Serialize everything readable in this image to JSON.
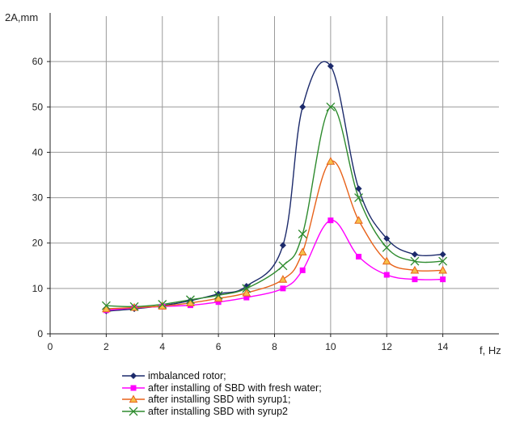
{
  "chart_data": {
    "type": "line",
    "title": "",
    "xlabel": "f, Hz",
    "ylabel": "2A,mm",
    "xlim": [
      0,
      16
    ],
    "ylim": [
      0,
      70
    ],
    "xticks": [
      0,
      2,
      4,
      6,
      8,
      10,
      12,
      14
    ],
    "yticks": [
      0,
      10,
      20,
      30,
      40,
      50,
      60
    ],
    "grid": true,
    "legend_position": "bottom",
    "series": [
      {
        "name": "imbalanced rotor;",
        "color": "#1c2a6b",
        "marker": "diamond",
        "x": [
          2,
          3,
          4,
          5,
          6,
          7,
          8.3,
          9,
          10,
          11,
          12,
          13,
          14
        ],
        "y": [
          5,
          5.5,
          6.2,
          7.3,
          8.8,
          10.5,
          19.5,
          50,
          59,
          32,
          21,
          17.5,
          17.5
        ]
      },
      {
        "name": "after installing of SBD with fresh water;",
        "color": "#ff00ff",
        "marker": "square",
        "x": [
          2,
          3,
          4,
          5,
          6,
          7,
          8.3,
          9,
          10,
          11,
          12,
          13,
          14
        ],
        "y": [
          5.2,
          5.7,
          6,
          6.3,
          7,
          8,
          10,
          14,
          25,
          17,
          13,
          12,
          12
        ]
      },
      {
        "name": "after installing SBD with syrup1;",
        "color": "#e8621a",
        "marker": "triangle",
        "x": [
          2,
          3,
          4,
          5,
          6,
          7,
          8.3,
          9,
          10,
          11,
          12,
          13,
          14
        ],
        "y": [
          5.5,
          5.8,
          6.1,
          6.8,
          7.8,
          9,
          12,
          18,
          38,
          25,
          16,
          14,
          14
        ]
      },
      {
        "name": "after installing SBD with syrup2",
        "color": "#2e8b2e",
        "marker": "x",
        "x": [
          2,
          3,
          4,
          5,
          6,
          7,
          8.3,
          9,
          10,
          11,
          12,
          13,
          14
        ],
        "y": [
          6.2,
          6,
          6.5,
          7.5,
          8.5,
          10,
          15,
          22,
          50,
          30,
          19,
          16,
          16
        ]
      }
    ]
  }
}
